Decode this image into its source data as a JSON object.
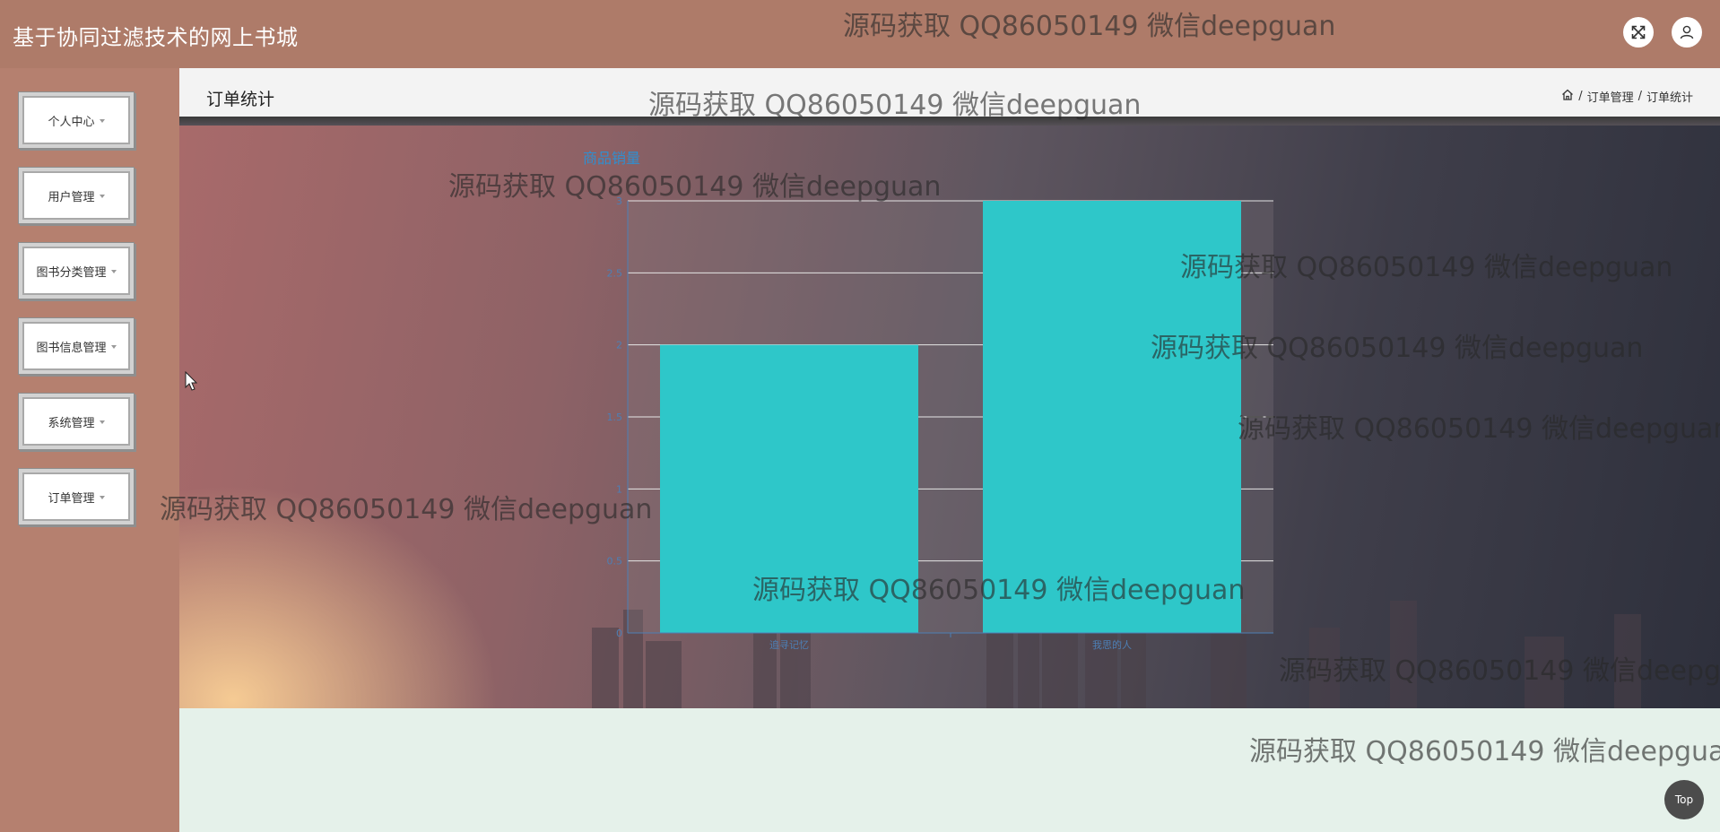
{
  "app": {
    "title": "基于协同过滤技术的网上书城"
  },
  "sidebar": {
    "items": [
      {
        "label": "个人中心"
      },
      {
        "label": "用户管理"
      },
      {
        "label": "图书分类管理"
      },
      {
        "label": "图书信息管理"
      },
      {
        "label": "系统管理"
      },
      {
        "label": "订单管理"
      }
    ]
  },
  "page": {
    "title": "订单统计",
    "breadcrumb": [
      "订单管理",
      "订单统计"
    ],
    "breadcrumb_separator": "/"
  },
  "colors": {
    "bar": "#2ec7c9",
    "axis": "#4d7fb5",
    "sidebar_bg": "#b5806f",
    "main_bg": "#e5f1ea"
  },
  "chart_data": {
    "type": "bar",
    "title": "商品销量",
    "categories": [
      "追寻记忆",
      "我思的人"
    ],
    "values": [
      2,
      3
    ],
    "ylim": [
      0,
      3
    ],
    "yticks": [
      "0",
      "0.5",
      "1",
      "1.5",
      "2",
      "2.5",
      "3"
    ],
    "grid": true
  },
  "watermark_text": "源码获取 QQ86050149 微信deepguan",
  "top_button": {
    "label": "Top"
  }
}
